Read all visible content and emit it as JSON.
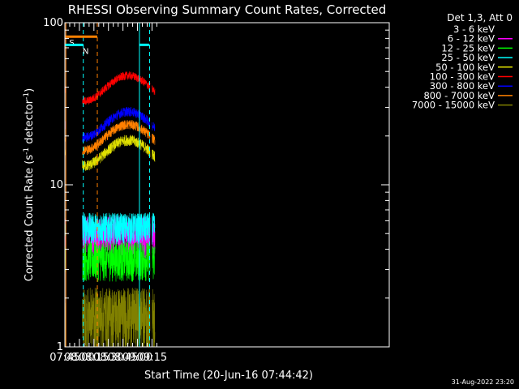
{
  "chart_data": {
    "type": "line",
    "title": "RHESSI Observing Summary Count Rates, Corrected",
    "xlabel": "Start Time (20-Jun-16 07:44:42)",
    "ylabel_main": "Corrected Count Rate (s",
    "ylabel_sup1": "-1",
    "ylabel_mid": " detector",
    "ylabel_sup2": "-1",
    "ylabel_end": ")",
    "yscale": "log",
    "ylim": [
      1,
      100
    ],
    "xlim_minutes": [
      465,
      800
    ],
    "ytick_labels": [
      {
        "value": 1,
        "label": "1"
      },
      {
        "value": 10,
        "label": "10"
      },
      {
        "value": 100,
        "label": "100"
      }
    ],
    "xtick_labels": [
      {
        "minute": 465,
        "label": "07:45"
      },
      {
        "minute": 480,
        "label": "08:00"
      },
      {
        "minute": 495,
        "label": "08:15"
      },
      {
        "minute": 510,
        "label": "08:30"
      },
      {
        "minute": 525,
        "label": "08:45"
      },
      {
        "minute": 540,
        "label": "09:00"
      },
      {
        "minute": 555,
        "label": "09:15"
      }
    ],
    "legend_header": "Det 1,3, Att 0",
    "legend_placement": "right",
    "series": [
      {
        "name": "3 - 6 keV",
        "color": "#000000",
        "level": 3.0,
        "noise": 0.35
      },
      {
        "name": "6 - 12 keV",
        "color": "#ff00ff",
        "level": 5.0,
        "noise": 0.3
      },
      {
        "name": "12 - 25 keV",
        "color": "#00ff00",
        "level": 3.5,
        "noise": 0.28
      },
      {
        "name": "25 - 50 keV",
        "color": "#00ffff",
        "level": 5.5,
        "noise": 0.22
      },
      {
        "name": "50 - 100 keV",
        "color": "#e0e000",
        "level": 16,
        "noise": 0.08
      },
      {
        "name": "100 - 300 keV",
        "color": "#ff0000",
        "level": 40,
        "noise": 0.06
      },
      {
        "name": "300 - 800 keV",
        "color": "#0000ff",
        "level": 24,
        "noise": 0.07
      },
      {
        "name": "800 - 7000 keV",
        "color": "#ff8000",
        "level": 20,
        "noise": 0.07
      },
      {
        "name": "7000 - 15000 keV",
        "color": "#808000",
        "level": 1.6,
        "noise": 0.45
      }
    ],
    "observing_gaps_minutes": [
      [
        465.8,
        483.0
      ],
      [
        553.0,
        555.0
      ]
    ],
    "flags": [
      {
        "label": "S",
        "color": "#ff8000",
        "start_minute": 465.5,
        "end_minute": 498.5,
        "value": 82
      },
      {
        "label": "N",
        "color": "#00ffff",
        "start_minute": 465.0,
        "end_minute": 484.0,
        "value": 73
      },
      {
        "label": "",
        "color": "#00ffff",
        "start_minute": 542.0,
        "end_minute": 552.0,
        "value": 73
      }
    ],
    "dashed_markers": [
      {
        "minute": 484.0,
        "color": "#00ffff"
      },
      {
        "minute": 498.5,
        "color": "#ff8000"
      },
      {
        "minute": 552.5,
        "color": "#00ffff"
      }
    ],
    "solid_markers": [
      {
        "minute": 466.0,
        "color": "#ff8000"
      },
      {
        "minute": 542.0,
        "color": "#00ffff"
      }
    ]
  },
  "timestamp": "31-Aug-2022 23:20"
}
